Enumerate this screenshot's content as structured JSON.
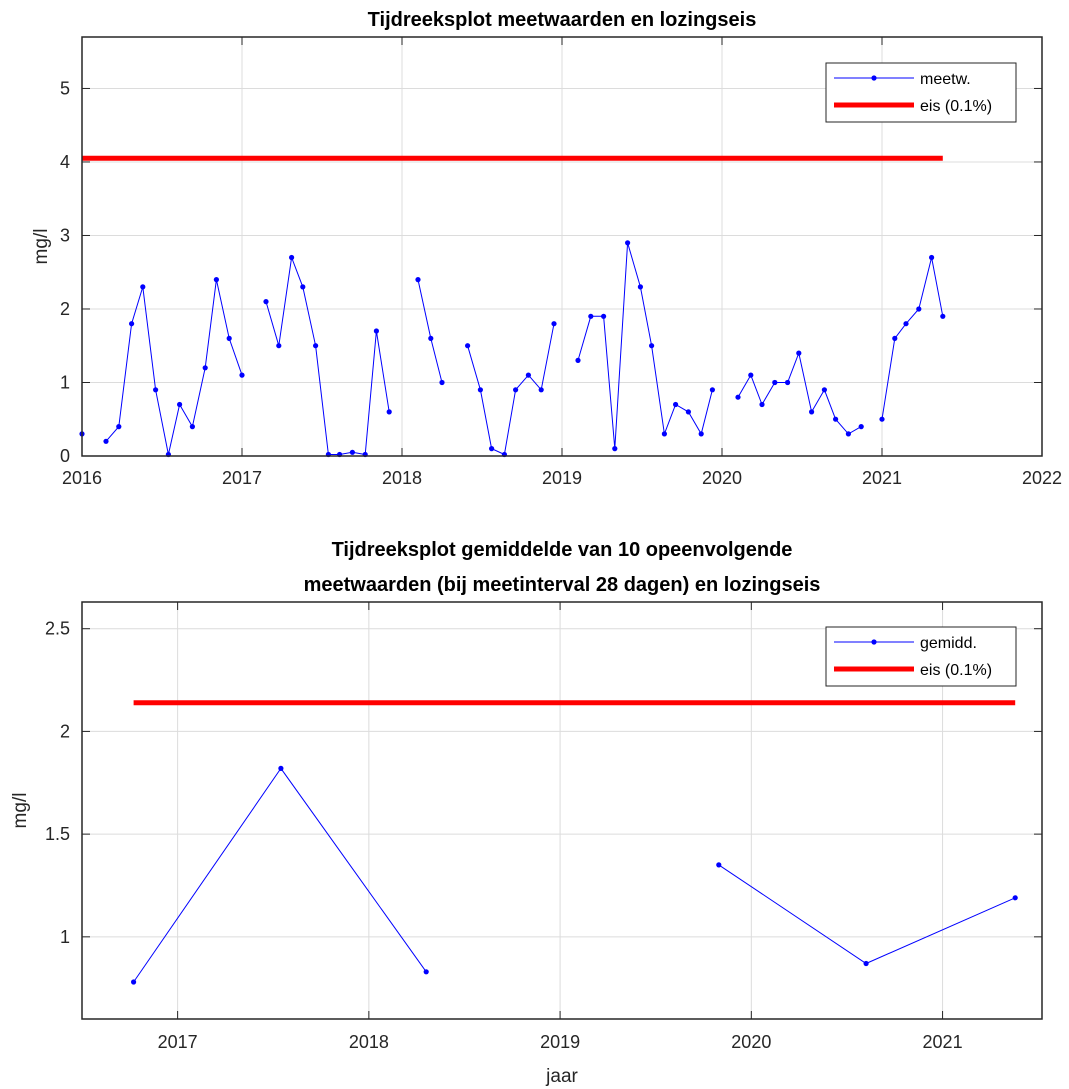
{
  "chart_data": [
    {
      "type": "line",
      "title": "Tijdreeksplot meetwaarden en lozingseis",
      "xlabel": "",
      "ylabel": "mg/l",
      "xlim": [
        2016,
        2022
      ],
      "ylim": [
        0,
        5.7
      ],
      "xticks": [
        "2016",
        "2017",
        "2018",
        "2019",
        "2020",
        "2021",
        "2022"
      ],
      "yticks": [
        "0",
        "1",
        "2",
        "3",
        "4",
        "5"
      ],
      "grid": true,
      "legend_position": "top-right",
      "series": [
        {
          "name": "meetw.",
          "color": "#0000ff",
          "style": "line-dot",
          "segments": [
            [
              [
                2016.0,
                0.3
              ]
            ],
            [
              [
                2016.15,
                0.2
              ],
              [
                2016.23,
                0.4
              ],
              [
                2016.31,
                1.8
              ],
              [
                2016.38,
                2.3
              ],
              [
                2016.46,
                0.9
              ],
              [
                2016.54,
                0.02
              ],
              [
                2016.61,
                0.7
              ],
              [
                2016.69,
                0.4
              ],
              [
                2016.77,
                1.2
              ],
              [
                2016.84,
                2.4
              ],
              [
                2016.92,
                1.6
              ],
              [
                2017.0,
                1.1
              ]
            ],
            [
              [
                2017.15,
                2.1
              ],
              [
                2017.23,
                1.5
              ],
              [
                2017.31,
                2.7
              ],
              [
                2017.38,
                2.3
              ],
              [
                2017.46,
                1.5
              ],
              [
                2017.54,
                0.02
              ],
              [
                2017.61,
                0.02
              ],
              [
                2017.69,
                0.05
              ],
              [
                2017.77,
                0.02
              ],
              [
                2017.84,
                1.7
              ],
              [
                2017.92,
                0.6
              ]
            ],
            [
              [
                2018.1,
                2.4
              ],
              [
                2018.18,
                1.6
              ],
              [
                2018.25,
                1.0
              ]
            ],
            [
              [
                2018.41,
                1.5
              ],
              [
                2018.49,
                0.9
              ],
              [
                2018.56,
                0.1
              ],
              [
                2018.64,
                0.02
              ],
              [
                2018.71,
                0.9
              ],
              [
                2018.79,
                1.1
              ],
              [
                2018.87,
                0.9
              ],
              [
                2018.95,
                1.8
              ]
            ],
            [
              [
                2019.1,
                1.3
              ],
              [
                2019.18,
                1.9
              ],
              [
                2019.26,
                1.9
              ],
              [
                2019.33,
                0.1
              ],
              [
                2019.41,
                2.9
              ],
              [
                2019.49,
                2.3
              ],
              [
                2019.56,
                1.5
              ],
              [
                2019.64,
                0.3
              ],
              [
                2019.71,
                0.7
              ],
              [
                2019.79,
                0.6
              ],
              [
                2019.87,
                0.3
              ],
              [
                2019.94,
                0.9
              ]
            ],
            [
              [
                2020.1,
                0.8
              ],
              [
                2020.18,
                1.1
              ],
              [
                2020.25,
                0.7
              ],
              [
                2020.33,
                1.0
              ],
              [
                2020.41,
                1.0
              ],
              [
                2020.48,
                1.4
              ],
              [
                2020.56,
                0.6
              ],
              [
                2020.64,
                0.9
              ],
              [
                2020.71,
                0.5
              ],
              [
                2020.79,
                0.3
              ],
              [
                2020.87,
                0.4
              ]
            ],
            [
              [
                2021.0,
                0.5
              ],
              [
                2021.08,
                1.6
              ],
              [
                2021.15,
                1.8
              ],
              [
                2021.23,
                2.0
              ],
              [
                2021.31,
                2.7
              ],
              [
                2021.38,
                1.9
              ]
            ]
          ]
        },
        {
          "name": "eis (0.1%)",
          "color": "#ff0000",
          "style": "thick-line",
          "segments": [
            [
              [
                2016.0,
                4.05
              ],
              [
                2021.38,
                4.05
              ]
            ]
          ]
        }
      ]
    },
    {
      "type": "line",
      "title": "Tijdreeksplot gemiddelde van 10 opeenvolgende\nmeetwaarden (bij meetinterval 28 dagen) en lozingseis",
      "xlabel": "jaar",
      "ylabel": "mg/l",
      "xlim": [
        2016.5,
        2021.52
      ],
      "ylim": [
        0.6,
        2.63
      ],
      "xticks": [
        "2017",
        "2018",
        "2019",
        "2020",
        "2021"
      ],
      "yticks": [
        "1",
        "1.5",
        "2",
        "2.5"
      ],
      "grid": true,
      "legend_position": "top-right",
      "series": [
        {
          "name": "gemidd.",
          "color": "#0000ff",
          "style": "line-dot",
          "segments": [
            [
              [
                2016.77,
                0.78
              ],
              [
                2017.54,
                1.82
              ],
              [
                2018.3,
                0.83
              ]
            ],
            [
              [
                2019.83,
                1.35
              ],
              [
                2020.6,
                0.87
              ],
              [
                2021.38,
                1.19
              ]
            ]
          ]
        },
        {
          "name": "eis (0.1%)",
          "color": "#ff0000",
          "style": "thick-line",
          "segments": [
            [
              [
                2016.77,
                2.14
              ],
              [
                2021.38,
                2.14
              ]
            ]
          ]
        }
      ]
    }
  ]
}
